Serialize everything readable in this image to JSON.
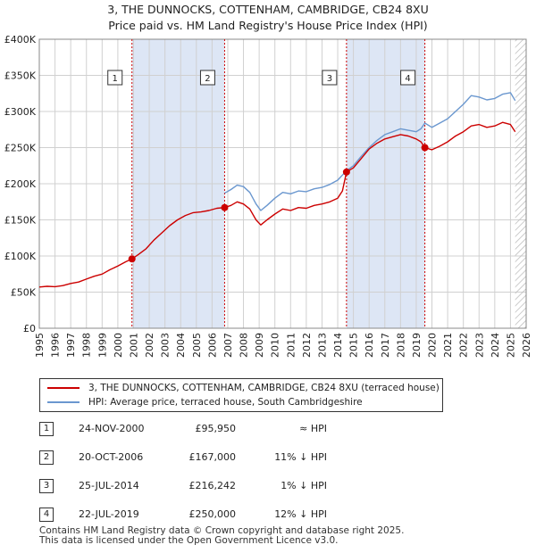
{
  "chart_data": {
    "type": "line",
    "title": "3, THE DUNNOCKS, COTTENHAM, CAMBRIDGE, CB24 8XU",
    "subtitle": "Price paid vs. HM Land Registry's House Price Index (HPI)",
    "xlim": [
      1995,
      2026
    ],
    "ylim": [
      0,
      400000
    ],
    "y_ticks": [
      0,
      50000,
      100000,
      150000,
      200000,
      250000,
      300000,
      350000,
      400000
    ],
    "y_tick_labels": [
      "£0",
      "£50K",
      "£100K",
      "£150K",
      "£200K",
      "£250K",
      "£300K",
      "£350K",
      "£400K"
    ],
    "x_ticks": [
      1995,
      1996,
      1997,
      1998,
      1999,
      2000,
      2001,
      2002,
      2003,
      2004,
      2005,
      2006,
      2007,
      2008,
      2009,
      2010,
      2011,
      2012,
      2013,
      2014,
      2015,
      2016,
      2017,
      2018,
      2019,
      2020,
      2021,
      2022,
      2023,
      2024,
      2025,
      2026
    ],
    "x_tick_labels": [
      "1995",
      "1996",
      "1997",
      "1998",
      "1999",
      "2000",
      "2001",
      "2002",
      "2003",
      "2004",
      "2005",
      "2006",
      "2007",
      "2008",
      "2009",
      "2010",
      "2011",
      "2012",
      "2013",
      "2014",
      "2015",
      "2016",
      "2017",
      "2018",
      "2019",
      "2020",
      "2021",
      "2022",
      "2023",
      "2024",
      "2025",
      "2026"
    ],
    "grid": true,
    "series": [
      {
        "name": "3, THE DUNNOCKS, COTTENHAM, CAMBRIDGE, CB24 8XU (terraced house)",
        "color": "#cc0000",
        "points": [
          [
            1995.0,
            57000
          ],
          [
            1995.5,
            58000
          ],
          [
            1996.0,
            57500
          ],
          [
            1996.5,
            59000
          ],
          [
            1997.0,
            62000
          ],
          [
            1997.5,
            64000
          ],
          [
            1998.0,
            68000
          ],
          [
            1998.5,
            72000
          ],
          [
            1999.0,
            75000
          ],
          [
            1999.5,
            81000
          ],
          [
            2000.0,
            86000
          ],
          [
            2000.5,
            92000
          ],
          [
            2000.9,
            95950
          ],
          [
            2001.3,
            102000
          ],
          [
            2001.8,
            110000
          ],
          [
            2002.3,
            122000
          ],
          [
            2002.8,
            132000
          ],
          [
            2003.3,
            142000
          ],
          [
            2003.8,
            150000
          ],
          [
            2004.3,
            156000
          ],
          [
            2004.8,
            160000
          ],
          [
            2005.3,
            161000
          ],
          [
            2005.8,
            163000
          ],
          [
            2006.3,
            166000
          ],
          [
            2006.8,
            167000
          ],
          [
            2007.2,
            170000
          ],
          [
            2007.6,
            175000
          ],
          [
            2008.0,
            172000
          ],
          [
            2008.4,
            165000
          ],
          [
            2008.8,
            150000
          ],
          [
            2009.1,
            143000
          ],
          [
            2009.5,
            150000
          ],
          [
            2010.0,
            158000
          ],
          [
            2010.5,
            165000
          ],
          [
            2011.0,
            163000
          ],
          [
            2011.5,
            167000
          ],
          [
            2012.0,
            166000
          ],
          [
            2012.5,
            170000
          ],
          [
            2013.0,
            172000
          ],
          [
            2013.5,
            175000
          ],
          [
            2014.0,
            180000
          ],
          [
            2014.3,
            190000
          ],
          [
            2014.56,
            216242
          ],
          [
            2015.0,
            222000
          ],
          [
            2015.5,
            235000
          ],
          [
            2016.0,
            248000
          ],
          [
            2016.5,
            256000
          ],
          [
            2017.0,
            262000
          ],
          [
            2017.5,
            265000
          ],
          [
            2018.0,
            268000
          ],
          [
            2018.5,
            266000
          ],
          [
            2019.0,
            262000
          ],
          [
            2019.3,
            258000
          ],
          [
            2019.55,
            250000
          ],
          [
            2020.0,
            247000
          ],
          [
            2020.5,
            252000
          ],
          [
            2021.0,
            258000
          ],
          [
            2021.5,
            266000
          ],
          [
            2022.0,
            272000
          ],
          [
            2022.5,
            280000
          ],
          [
            2023.0,
            282000
          ],
          [
            2023.5,
            278000
          ],
          [
            2024.0,
            280000
          ],
          [
            2024.5,
            285000
          ],
          [
            2025.0,
            282000
          ],
          [
            2025.3,
            272000
          ]
        ]
      },
      {
        "name": "HPI: Average price, terraced house, South Cambridgeshire",
        "color": "#6a97cf",
        "points": [
          [
            2006.8,
            187000
          ],
          [
            2007.2,
            192000
          ],
          [
            2007.6,
            198000
          ],
          [
            2008.0,
            196000
          ],
          [
            2008.4,
            188000
          ],
          [
            2008.8,
            172000
          ],
          [
            2009.1,
            163000
          ],
          [
            2009.5,
            170000
          ],
          [
            2010.0,
            180000
          ],
          [
            2010.5,
            188000
          ],
          [
            2011.0,
            186000
          ],
          [
            2011.5,
            190000
          ],
          [
            2012.0,
            189000
          ],
          [
            2012.5,
            193000
          ],
          [
            2013.0,
            195000
          ],
          [
            2013.5,
            199000
          ],
          [
            2014.0,
            205000
          ],
          [
            2014.3,
            212000
          ],
          [
            2014.56,
            218000
          ],
          [
            2015.0,
            225000
          ],
          [
            2015.5,
            238000
          ],
          [
            2016.0,
            250000
          ],
          [
            2016.5,
            260000
          ],
          [
            2017.0,
            268000
          ],
          [
            2017.5,
            272000
          ],
          [
            2018.0,
            276000
          ],
          [
            2018.5,
            274000
          ],
          [
            2019.0,
            272000
          ],
          [
            2019.3,
            276000
          ],
          [
            2019.55,
            284000
          ],
          [
            2020.0,
            278000
          ],
          [
            2020.5,
            284000
          ],
          [
            2021.0,
            290000
          ],
          [
            2021.5,
            300000
          ],
          [
            2022.0,
            310000
          ],
          [
            2022.5,
            322000
          ],
          [
            2023.0,
            320000
          ],
          [
            2023.5,
            316000
          ],
          [
            2024.0,
            318000
          ],
          [
            2024.5,
            324000
          ],
          [
            2025.0,
            326000
          ],
          [
            2025.3,
            315000
          ]
        ]
      }
    ],
    "sales": [
      {
        "num": "1",
        "year": 2000.9,
        "price": 95950
      },
      {
        "num": "2",
        "year": 2006.8,
        "price": 167000
      },
      {
        "num": "3",
        "year": 2014.56,
        "price": 216242
      },
      {
        "num": "4",
        "year": 2019.55,
        "price": 250000
      }
    ],
    "shaded_periods": [
      [
        2000.9,
        2006.8
      ],
      [
        2014.56,
        2019.55
      ]
    ],
    "forecast_start": 2025.3
  },
  "legend": {
    "property_label": "3, THE DUNNOCKS, COTTENHAM, CAMBRIDGE, CB24 8XU (terraced house)",
    "hpi_label": "HPI: Average price, terraced house, South Cambridgeshire"
  },
  "sales_table": [
    {
      "num": "1",
      "date": "24-NOV-2000",
      "price": "£95,950",
      "hpi": "≈ HPI"
    },
    {
      "num": "2",
      "date": "20-OCT-2006",
      "price": "£167,000",
      "hpi": "11% ↓ HPI"
    },
    {
      "num": "3",
      "date": "25-JUL-2014",
      "price": "£216,242",
      "hpi": "1% ↓ HPI"
    },
    {
      "num": "4",
      "date": "22-JUL-2019",
      "price": "£250,000",
      "hpi": "12% ↓ HPI"
    }
  ],
  "footer": {
    "line1": "Contains HM Land Registry data © Crown copyright and database right 2025.",
    "line2": "This data is licensed under the Open Government Licence v3.0."
  },
  "colors": {
    "property": "#cc0000",
    "hpi": "#6a97cf",
    "shade": "#dde6f5",
    "grid": "#d0d0d0"
  }
}
